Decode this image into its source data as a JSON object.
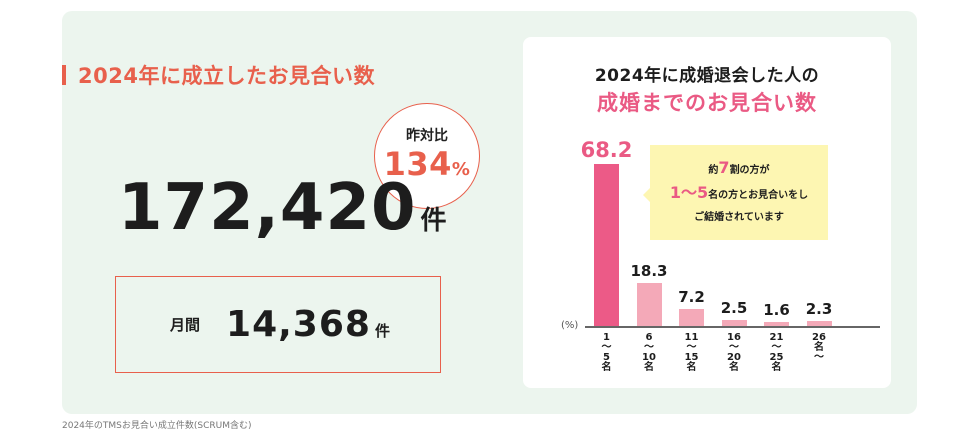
{
  "left": {
    "title": "2024年に成立したお見合い数",
    "yoy": {
      "label": "昨対比",
      "value": "134",
      "unit": "%"
    },
    "total": {
      "value": "172,420",
      "unit": "件"
    },
    "monthly": {
      "label": "月間",
      "value": "14,368",
      "unit": "件"
    }
  },
  "card": {
    "title_line1": "2024年に成婚退会した人の",
    "title_line2": "成婚までのお見合い数",
    "unit_label": "(%)",
    "callout": {
      "line1_pre": "約",
      "line1_hl": "7",
      "line1_post": "割の方が",
      "line2_hl": "1〜5",
      "line2_post": "名の方とお見合いをし",
      "line3": "ご結婚されています"
    }
  },
  "footnote": "2024年のTMSお見合い成立件数(SCRUM含む)",
  "colors": {
    "accent_orange": "#e8604c",
    "accent_pink": "#ea5a84",
    "bar_highlight": "#ec5a87",
    "bar_normal": "#f4a9b8",
    "panel_bg": "#ecf5ee",
    "callout_bg": "#fdf6b2"
  },
  "chart_data": {
    "type": "bar",
    "title": "2024年に成婚退会した人の成婚までのお見合い数",
    "categories": [
      "1〜5名",
      "6〜10名",
      "11〜15名",
      "16〜20名",
      "21〜25名",
      "26名〜"
    ],
    "category_labels_vertical": [
      "1\n〜\n5\n名",
      "6\n〜\n10\n名",
      "11\n〜\n15\n名",
      "16\n〜\n20\n名",
      "21\n〜\n25\n名",
      "26\n名\n〜"
    ],
    "values": [
      68.2,
      18.3,
      7.2,
      2.5,
      1.6,
      2.3
    ],
    "value_labels": [
      "68.2",
      "18.3",
      "7.2",
      "2.5",
      "1.6",
      "2.3"
    ],
    "ylabel": "(%)",
    "xlabel": "",
    "ylim": [
      0,
      70
    ],
    "grid": false,
    "highlight_index": 0,
    "annotation": "約7割の方が1〜5名の方とお見合いをしご結婚されています"
  }
}
